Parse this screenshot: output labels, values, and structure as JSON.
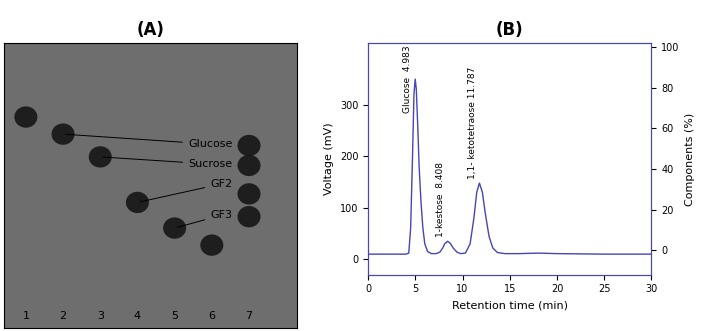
{
  "chart_data": [
    {
      "type": "tlc",
      "title": "(A)",
      "categories": [
        "1",
        "2",
        "3",
        "4",
        "5",
        "6",
        "7"
      ],
      "xlim": [
        0.4,
        8.3
      ],
      "ylim": [
        0,
        1
      ],
      "tick_labels": false,
      "spots": [
        {
          "lane": 1,
          "rf": 0.74
        },
        {
          "lane": 2,
          "rf": 0.68
        },
        {
          "lane": 3,
          "rf": 0.6
        },
        {
          "lane": 4,
          "rf": 0.44
        },
        {
          "lane": 5,
          "rf": 0.35
        },
        {
          "lane": 6,
          "rf": 0.29
        },
        {
          "lane": 7,
          "rf": 0.64
        },
        {
          "lane": 7,
          "rf": 0.57
        },
        {
          "lane": 7,
          "rf": 0.47
        },
        {
          "lane": 7,
          "rf": 0.39
        }
      ],
      "annotations": [
        {
          "text": "Glucose",
          "lane": 2,
          "rf": 0.68
        },
        {
          "text": "Sucrose",
          "lane": 3,
          "rf": 0.6
        },
        {
          "text": "GF2",
          "lane": 4,
          "rf": 0.44
        },
        {
          "text": "GF3",
          "lane": 5,
          "rf": 0.35
        }
      ]
    },
    {
      "type": "line",
      "title": "(B)",
      "x_label": "Retention time (min)",
      "y_label": "Voltage (mV)",
      "y2_label": "Components (%)",
      "color": "#4545b5",
      "x": [
        0,
        4.0,
        4.3,
        4.5,
        4.7,
        4.85,
        4.983,
        5.1,
        5.25,
        5.4,
        5.6,
        5.8,
        6.0,
        6.3,
        6.7,
        7.2,
        7.6,
        7.9,
        8.1,
        8.408,
        8.7,
        9.0,
        9.4,
        9.8,
        10.3,
        10.8,
        11.2,
        11.5,
        11.787,
        12.1,
        12.4,
        12.8,
        13.2,
        13.7,
        14.5,
        16,
        18,
        20,
        25,
        30
      ],
      "values": [
        10,
        10,
        12,
        60,
        200,
        320,
        350,
        330,
        260,
        180,
        110,
        60,
        30,
        15,
        11,
        11,
        14,
        22,
        30,
        35,
        31,
        22,
        14,
        11,
        12,
        30,
        80,
        130,
        148,
        130,
        90,
        45,
        22,
        13,
        11,
        11,
        12,
        11,
        10,
        10
      ],
      "xlim": [
        0,
        30
      ],
      "xticks": [
        0,
        5,
        10,
        15,
        20,
        25,
        30
      ],
      "ylim": [
        -30,
        420
      ],
      "yticks": [
        0,
        100,
        200,
        300
      ],
      "y2lim": [
        -12,
        102
      ],
      "y2ticks": [
        0,
        20,
        40,
        60,
        80,
        100
      ],
      "grid": false,
      "annotations": [
        {
          "text": "Glucose  4.983",
          "x": 4.983,
          "y": 350
        },
        {
          "text": "1-kestose  8.408",
          "x": 8.408,
          "y": 35
        },
        {
          "text": "1,1- ketotetraose 11.787",
          "x": 11.787,
          "y": 148
        }
      ]
    }
  ]
}
